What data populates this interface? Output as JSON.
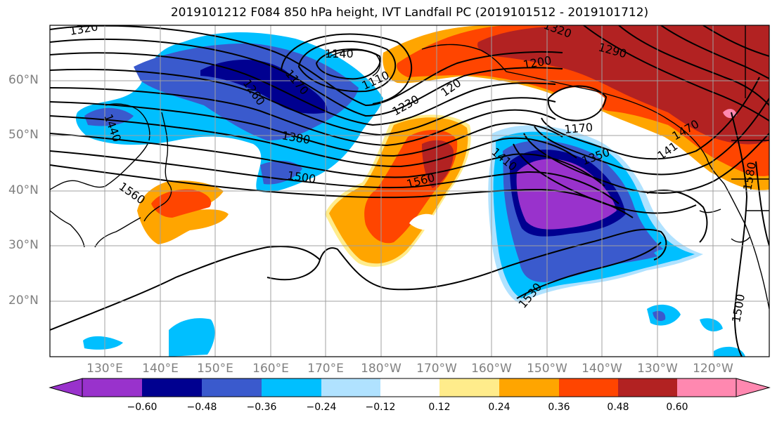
{
  "title": "2019101212 F084 850 hPa height, IVT Landfall PC (2019101512 - 2019101712)",
  "lat_labels": [
    "60°N",
    "50°N",
    "40°N",
    "30°N",
    "20°N"
  ],
  "lon_labels": [
    "130°E",
    "140°E",
    "150°E",
    "160°E",
    "170°E",
    "180°W",
    "170°W",
    "160°W",
    "150°W",
    "140°W",
    "130°W",
    "120°W"
  ],
  "contour_labels": [
    "1320",
    "1440",
    "1260",
    "1170",
    "1140",
    "1110",
    "1230",
    "120",
    "1200",
    "1290",
    "1380",
    "1500",
    "1560",
    "1560",
    "1410",
    "1170",
    "1350",
    "141",
    "1530",
    "1500",
    "1470",
    "1580",
    "1320"
  ],
  "colorbar": {
    "ticks": [
      "−0.60",
      "−0.48",
      "−0.36",
      "−0.24",
      "−0.12",
      "0.12",
      "0.24",
      "0.36",
      "0.48",
      "0.60"
    ],
    "colors": [
      "#9932cc",
      "#000090",
      "#3a5acd",
      "#00bfff",
      "#b0e2ff",
      "#ffffff",
      "#ffec8b",
      "#ffa500",
      "#ff4500",
      "#b22222",
      "#ff88b0"
    ]
  },
  "fill_colors": {
    "violet": "#9932cc",
    "navy": "#000090",
    "blue": "#3a5acd",
    "sky": "#00bfff",
    "pale_blue": "#b0e2ff",
    "yellow": "#ffec8b",
    "orange": "#ffa500",
    "red_orange": "#ff4500",
    "firebrick": "#b22222",
    "pink": "#ff88b0"
  }
}
